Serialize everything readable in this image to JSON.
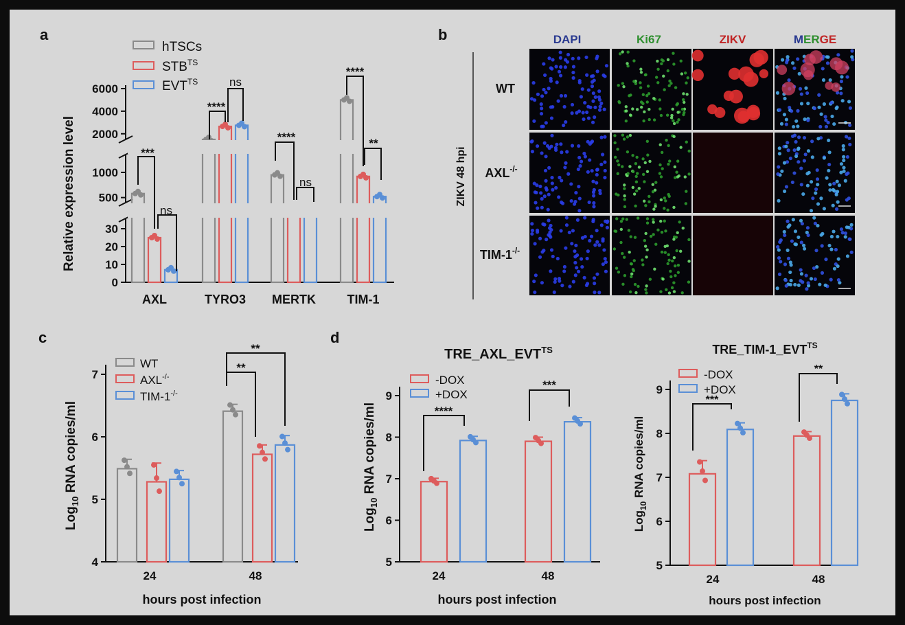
{
  "panel_labels": {
    "a": "a",
    "b": "b",
    "c": "c",
    "d": "d"
  },
  "colors": {
    "grey": "#8a8a8a",
    "red": "#dd5c5c",
    "blue": "#5a8fd6",
    "dapi": "#1f2fd0",
    "ki67": "#2ea82e",
    "zikv": "#d82020"
  },
  "panel_a": {
    "ylabel": "Relative expression level",
    "ytick_labels": [
      "0",
      "10",
      "20",
      "30",
      "500",
      "1000",
      "2000",
      "4000",
      "6000"
    ],
    "categories": [
      "AXL",
      "TYRO3",
      "MERTK",
      "TIM-1"
    ],
    "legend": [
      {
        "text": "hTSCs",
        "sup": ""
      },
      {
        "text": "STB",
        "sup": "TS"
      },
      {
        "text": "EVT",
        "sup": "TS"
      }
    ],
    "significance": [
      {
        "label": "***",
        "category": "AXL",
        "groups": [
          "hTSCs",
          "STB"
        ]
      },
      {
        "label": "ns",
        "category": "AXL",
        "groups": [
          "STB",
          "EVT"
        ]
      },
      {
        "label": "****",
        "category": "TYRO3",
        "groups": [
          "hTSCs",
          "STB"
        ]
      },
      {
        "label": "ns",
        "category": "TYRO3",
        "groups": [
          "STB",
          "EVT"
        ]
      },
      {
        "label": "****",
        "category": "MERTK",
        "groups": [
          "hTSCs",
          "STB"
        ]
      },
      {
        "label": "ns",
        "category": "MERTK",
        "groups": [
          "STB",
          "EVT"
        ]
      },
      {
        "label": "****",
        "category": "TIM-1",
        "groups": [
          "hTSCs",
          "STB"
        ]
      },
      {
        "label": "**",
        "category": "TIM-1",
        "groups": [
          "STB",
          "EVT"
        ]
      }
    ]
  },
  "panel_b": {
    "columns": [
      "DAPI",
      "Ki67",
      "ZIKV",
      "MERGE"
    ],
    "merge_parts": [
      "M",
      "ER",
      "GE"
    ],
    "rows": [
      {
        "text": "WT",
        "sup": ""
      },
      {
        "text": "AXL",
        "sup": "-/-"
      },
      {
        "text": "TIM-1",
        "sup": "-/-"
      }
    ],
    "side_label": "ZIKV 48 hpi"
  },
  "panel_c": {
    "ylabel_main": "Log",
    "ylabel_sub": "10",
    "ylabel_rest": " RNA copies/ml",
    "xlabel": "hours post infection",
    "categories": [
      "24",
      "48"
    ],
    "yticks": [
      "4",
      "5",
      "6",
      "7"
    ],
    "legend": [
      {
        "text": "WT",
        "sup": ""
      },
      {
        "text": "AXL",
        "sup": "-/-"
      },
      {
        "text": "TIM-1",
        "sup": "-/-"
      }
    ],
    "significance": [
      {
        "label": "**"
      },
      {
        "label": "**"
      }
    ]
  },
  "panel_d1": {
    "title_main": "TRE_AXL_EVT",
    "title_sup": "TS",
    "ylabel_main": "Log",
    "ylabel_sub": "10",
    "ylabel_rest": " RNA copies/ml",
    "xlabel": "hours post infection",
    "categories": [
      "24",
      "48"
    ],
    "yticks": [
      "5",
      "6",
      "7",
      "8",
      "9"
    ],
    "legend": [
      "-DOX",
      "+DOX"
    ],
    "significance": [
      {
        "label": "****"
      },
      {
        "label": "***"
      }
    ]
  },
  "panel_d2": {
    "title_main": "TRE_TIM-1_EVT",
    "title_sup": "TS",
    "ylabel_main": "Log",
    "ylabel_sub": "10",
    "ylabel_rest": " RNA copies/ml",
    "xlabel": "hours post infection",
    "categories": [
      "24",
      "48"
    ],
    "yticks": [
      "5",
      "6",
      "7",
      "8",
      "9"
    ],
    "legend": [
      "-DOX",
      "+DOX"
    ],
    "significance": [
      {
        "label": "***"
      },
      {
        "label": "**"
      }
    ]
  },
  "chart_data": [
    {
      "id": "a",
      "type": "bar",
      "ylabel": "Relative expression level",
      "ylim": [
        0,
        6000
      ],
      "y_axis_broken": true,
      "categories": [
        "AXL",
        "TYRO3",
        "MERTK",
        "TIM-1"
      ],
      "series": [
        {
          "name": "hTSCs",
          "values": [
            580,
            1500,
            950,
            5000
          ]
        },
        {
          "name": "STB",
          "values": [
            25,
            2650,
            230,
            920
          ]
        },
        {
          "name": "EVT",
          "values": [
            7,
            2750,
            190,
            520
          ]
        }
      ]
    },
    {
      "id": "c",
      "type": "bar",
      "ylabel": "Log10 RNA copies/ml",
      "xlabel": "hours post infection",
      "ylim": [
        4,
        7
      ],
      "categories": [
        "24",
        "48"
      ],
      "series": [
        {
          "name": "WT",
          "values": [
            5.49,
            6.41
          ],
          "errors": [
            0.15,
            0.11
          ]
        },
        {
          "name": "AXL-/-",
          "values": [
            5.28,
            5.72
          ],
          "errors": [
            0.3,
            0.15
          ]
        },
        {
          "name": "TIM-1-/-",
          "values": [
            5.32,
            5.87
          ],
          "errors": [
            0.14,
            0.15
          ]
        }
      ]
    },
    {
      "id": "d1",
      "type": "bar",
      "title": "TRE_AXL_EVT TS",
      "ylabel": "Log10 RNA copies/ml",
      "xlabel": "hours post infection",
      "ylim": [
        5,
        9
      ],
      "categories": [
        "24",
        "48"
      ],
      "series": [
        {
          "name": "-DOX",
          "values": [
            6.93,
            7.9
          ],
          "errors": [
            0.08,
            0.1
          ]
        },
        {
          "name": "+DOX",
          "values": [
            7.92,
            8.37
          ],
          "errors": [
            0.1,
            0.1
          ]
        }
      ]
    },
    {
      "id": "d2",
      "type": "bar",
      "title": "TRE_TIM-1_EVT TS",
      "ylabel": "Log10 RNA copies/ml",
      "xlabel": "hours post infection",
      "ylim": [
        5,
        9
      ],
      "categories": [
        "24",
        "48"
      ],
      "series": [
        {
          "name": "-DOX",
          "values": [
            7.08,
            7.94
          ],
          "errors": [
            0.3,
            0.1
          ]
        },
        {
          "name": "+DOX",
          "values": [
            8.09,
            8.75
          ],
          "errors": [
            0.15,
            0.15
          ]
        }
      ]
    }
  ]
}
